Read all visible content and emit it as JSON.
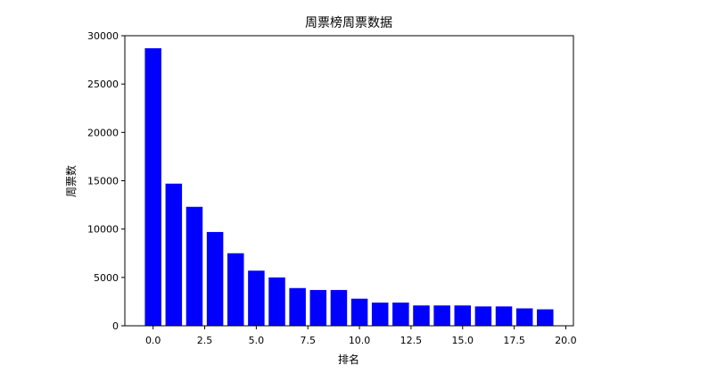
{
  "chart_data": {
    "type": "bar",
    "title": "周票榜周票数据",
    "xlabel": "排名",
    "ylabel": "周票数",
    "x": [
      0,
      1,
      2,
      3,
      4,
      5,
      6,
      7,
      8,
      9,
      10,
      11,
      12,
      13,
      14,
      15,
      16,
      17,
      18,
      19
    ],
    "values": [
      28700,
      14700,
      12300,
      9700,
      7500,
      5700,
      5000,
      3900,
      3700,
      3700,
      2800,
      2400,
      2400,
      2100,
      2100,
      2100,
      2000,
      2000,
      1800,
      1700
    ],
    "xlim": [
      -1.37,
      20.37
    ],
    "ylim": [
      0,
      30000
    ],
    "xticks": [
      0.0,
      2.5,
      5.0,
      7.5,
      10.0,
      12.5,
      15.0,
      17.5,
      20.0
    ],
    "xtick_labels": [
      "0.0",
      "2.5",
      "5.0",
      "7.5",
      "10.0",
      "12.5",
      "15.0",
      "17.5",
      "20.0"
    ],
    "yticks": [
      0,
      5000,
      10000,
      15000,
      20000,
      25000,
      30000
    ],
    "ytick_labels": [
      "0",
      "5000",
      "10000",
      "15000",
      "20000",
      "25000",
      "30000"
    ],
    "bar_color": "#0000ff",
    "grid": false,
    "legend": false
  }
}
